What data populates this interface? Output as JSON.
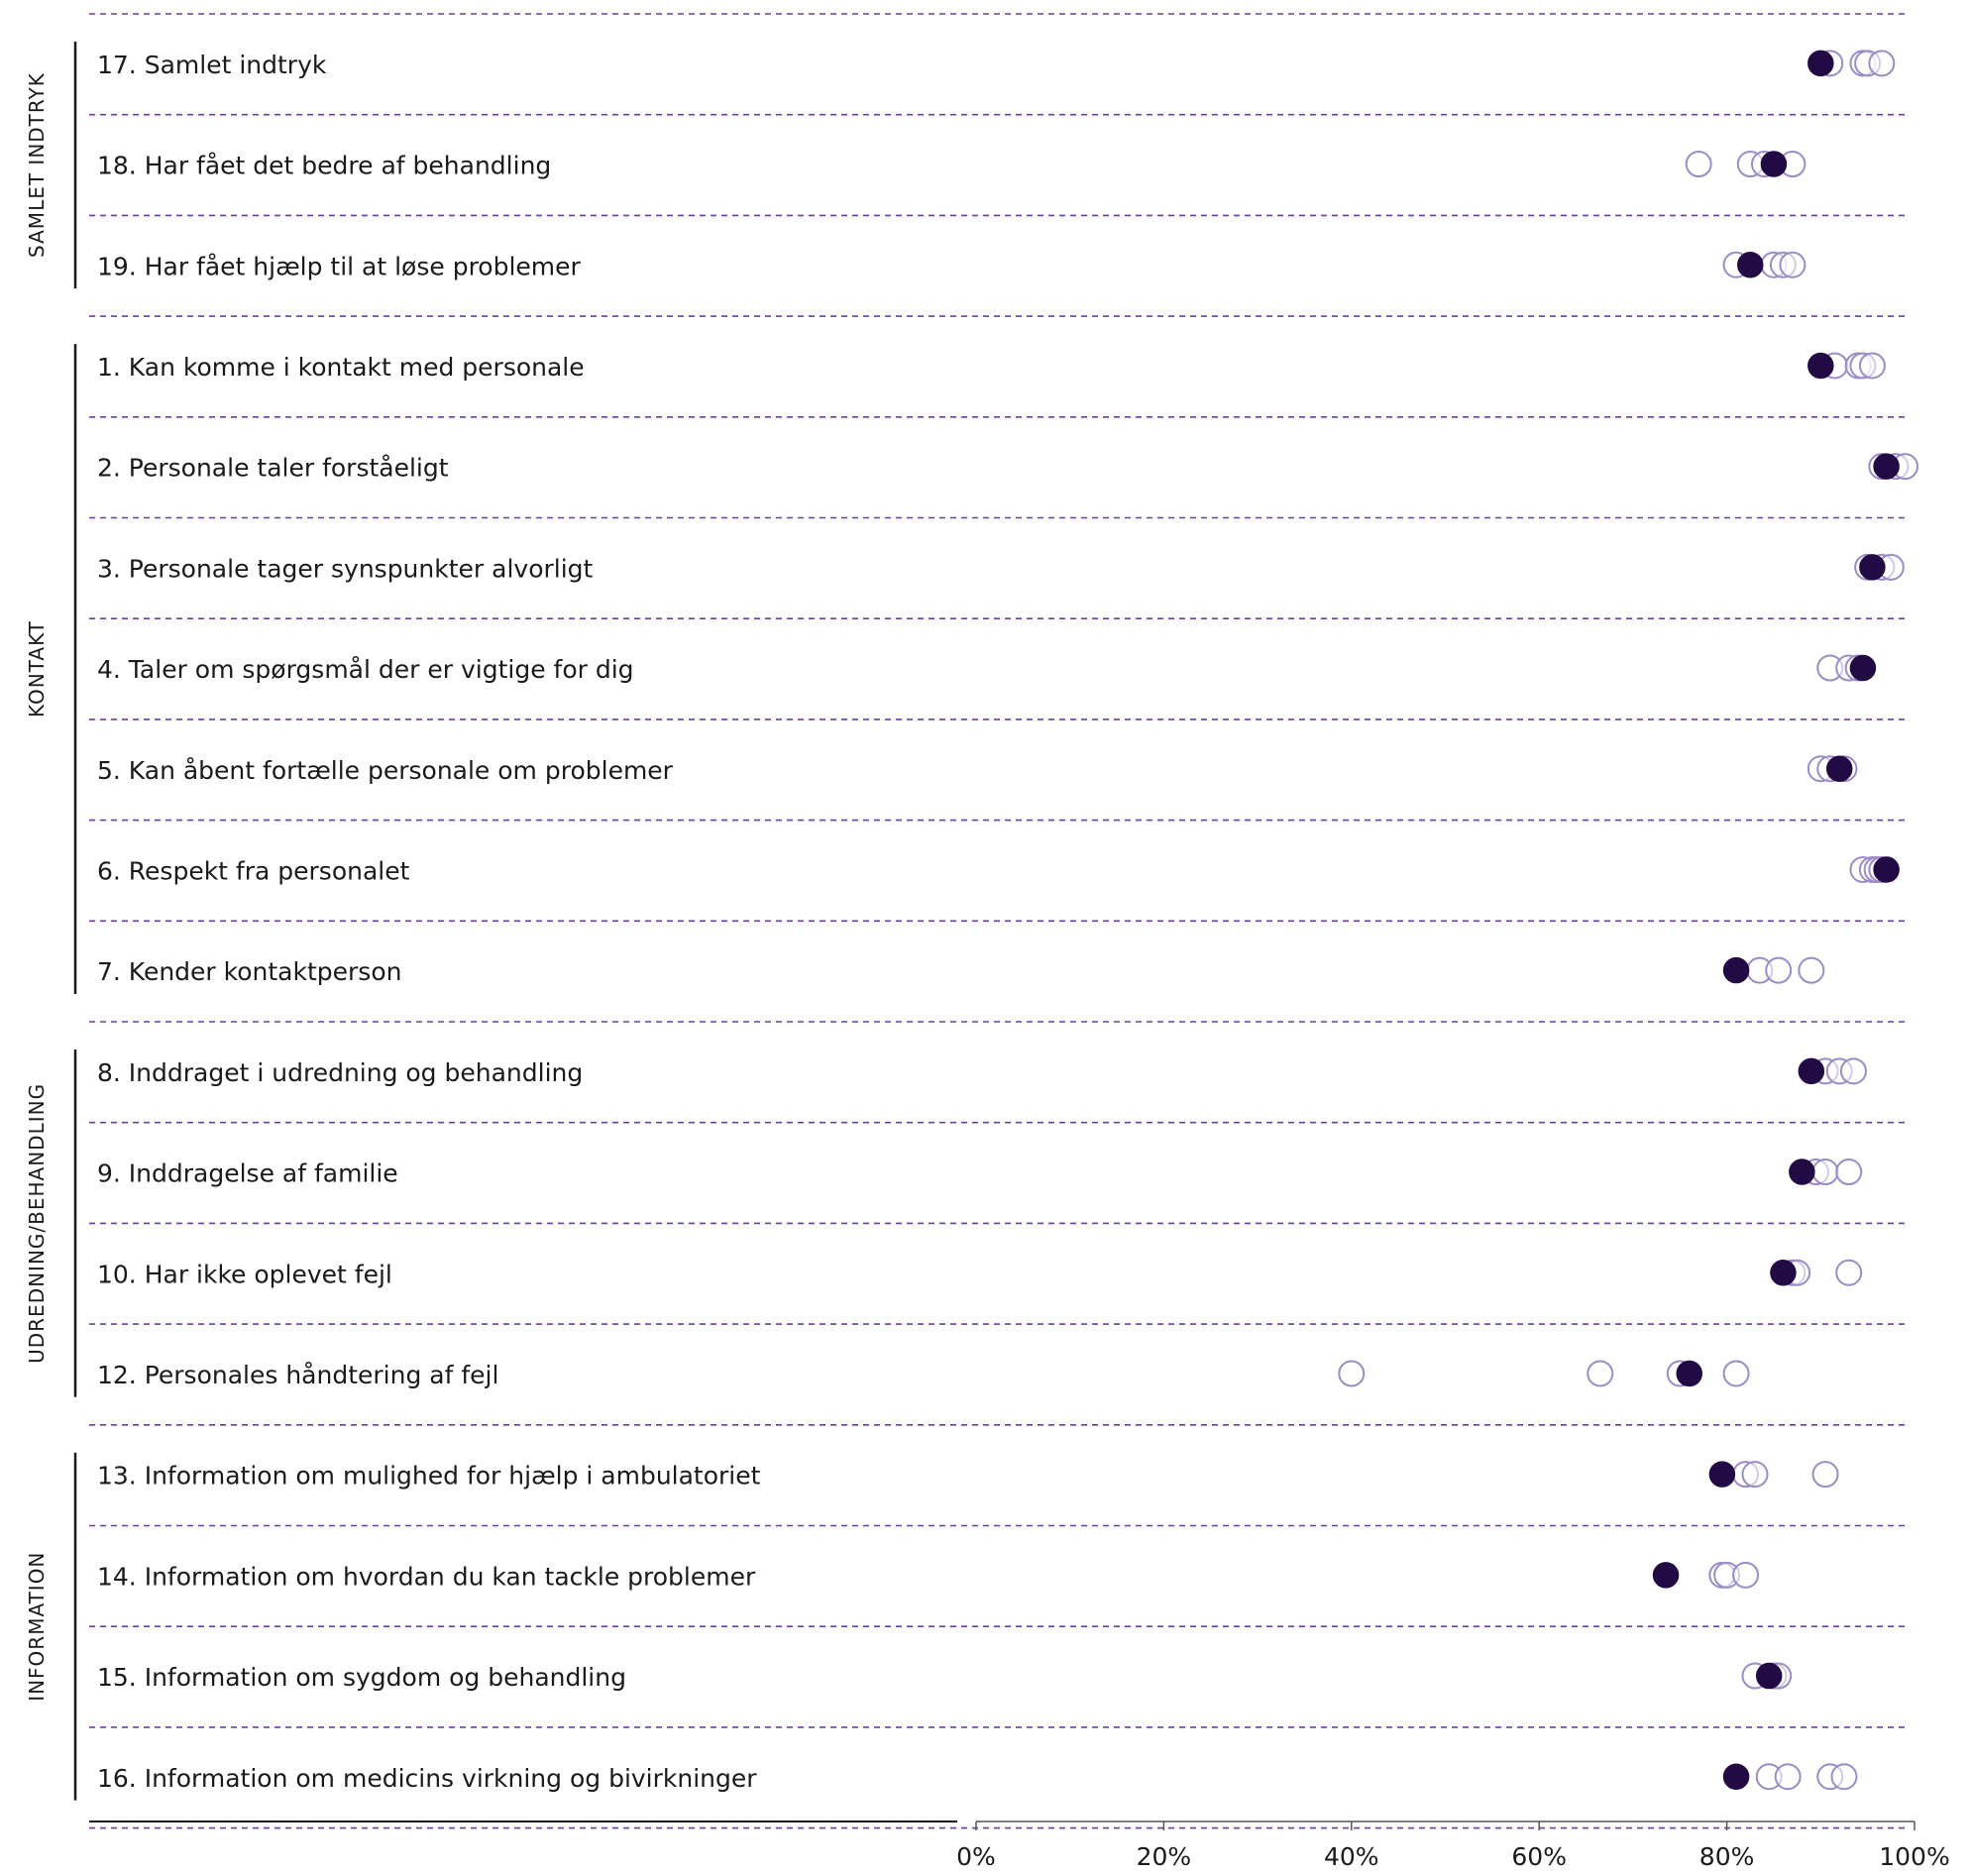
{
  "chart_data": {
    "type": "scatter",
    "title": "",
    "xlabel": "",
    "ylabel": "",
    "xlim": [
      0,
      100
    ],
    "x_ticks": [
      "0%",
      "20%",
      "40%",
      "60%",
      "80%",
      "100%"
    ],
    "colors": {
      "main": "#220a44",
      "other": "#9b8cc7",
      "gridline": "#6b3fa0"
    },
    "groups": [
      {
        "label": "SAMLET INDTRYK",
        "rows": [
          {
            "label": "17. Samlet indtryk",
            "main": 90,
            "others": [
              91,
              94.5,
              95,
              96.5
            ]
          },
          {
            "label": "18. Har fået det bedre af behandling",
            "main": 85,
            "others": [
              77,
              82.5,
              84,
              87
            ]
          },
          {
            "label": "19. Har fået hjælp til at løse problemer",
            "main": 82.5,
            "others": [
              81,
              85,
              86,
              87
            ]
          }
        ]
      },
      {
        "label": "KONTAKT",
        "rows": [
          {
            "label": "1. Kan komme i kontakt med personale",
            "main": 90,
            "others": [
              91.5,
              94,
              94.5,
              95.5
            ]
          },
          {
            "label": "2. Personale taler forståeligt",
            "main": 97,
            "others": [
              96.5,
              98,
              99
            ]
          },
          {
            "label": "3. Personale tager synspunkter alvorligt",
            "main": 95.5,
            "others": [
              95,
              96.5,
              97.5
            ]
          },
          {
            "label": "4. Taler om spørgsmål der er vigtige for dig",
            "main": 94.5,
            "others": [
              91,
              93,
              94
            ]
          },
          {
            "label": "5. Kan åbent fortælle personale om problemer",
            "main": 92,
            "others": [
              90,
              91,
              92.5
            ]
          },
          {
            "label": "6. Respekt fra personalet",
            "main": 97,
            "others": [
              94.5,
              95.5,
              96,
              96.5
            ]
          },
          {
            "label": "7. Kender kontaktperson",
            "main": 81,
            "others": [
              83.5,
              85.5,
              89
            ]
          }
        ]
      },
      {
        "label": "UDREDNING/BEHANDLING",
        "rows": [
          {
            "label": "8. Inddraget i udredning og behandling",
            "main": 89,
            "others": [
              90.5,
              92,
              93.5
            ]
          },
          {
            "label": "9. Inddragelse af familie",
            "main": 88,
            "others": [
              89.5,
              90.5,
              93
            ]
          },
          {
            "label": "10. Har ikke oplevet fejl",
            "main": 86,
            "others": [
              87,
              87.5,
              93
            ]
          },
          {
            "label": "12. Personales håndtering af fejl",
            "main": 76,
            "others": [
              40,
              66.5,
              75,
              81
            ]
          }
        ]
      },
      {
        "label": "INFORMATION",
        "rows": [
          {
            "label": "13. Information om mulighed for hjælp i ambulatoriet",
            "main": 79.5,
            "others": [
              82,
              83,
              90.5
            ]
          },
          {
            "label": "14. Information om hvordan du kan tackle problemer",
            "main": 73.5,
            "others": [
              79.5,
              80,
              82
            ]
          },
          {
            "label": "15. Information om sygdom og behandling",
            "main": 84.5,
            "others": [
              83,
              85,
              85.5
            ]
          },
          {
            "label": "16. Information om medicins virkning og bivirkninger",
            "main": 81,
            "others": [
              84.5,
              86.5,
              91,
              92.5
            ]
          }
        ]
      }
    ]
  }
}
